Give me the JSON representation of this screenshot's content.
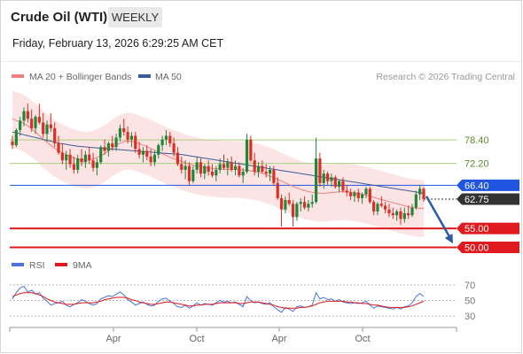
{
  "header": {
    "instrument": "Crude Oil (WTI)",
    "timeframe": "WEEKLY",
    "timestamp": "Friday, February 13, 2026 6:29:25 AM CET"
  },
  "legend": {
    "ma20_label": "MA 20 + Bollinger Bands",
    "ma50_label": "MA 50",
    "credit": "Research © 2026 Trading Central"
  },
  "rsi_legend": {
    "rsi_label": "RSI",
    "ma_label": "9MA"
  },
  "colors": {
    "bull": "#22863a",
    "bear": "#d93025",
    "ma20": "#f08080",
    "ma50": "#3a5a9a",
    "bollinger_fill": "#fde4e4",
    "resistance": "#a6cf7d",
    "pivot": "#1f55e0",
    "support": "#e0191e",
    "current_price_tag": "#333333",
    "arrow": "#2a5aa8",
    "rsi": "#4a74d9",
    "rsi_ma": "#e0191e"
  },
  "chart_data": [
    {
      "type": "candlestick",
      "title": "Crude Oil (WTI)",
      "x_tick_labels": [
        "Apr",
        "Oct",
        "Apr",
        "Oct"
      ],
      "ylim": [
        48,
        92
      ],
      "levels": [
        {
          "label": "78.40",
          "value": 78.4,
          "kind": "resistance"
        },
        {
          "label": "72.20",
          "value": 72.2,
          "kind": "resistance"
        },
        {
          "label": "66.40",
          "value": 66.4,
          "kind": "pivot"
        },
        {
          "label": "62.75",
          "value": 62.75,
          "kind": "last"
        },
        {
          "label": "55.00",
          "value": 55.0,
          "kind": "support"
        },
        {
          "label": "50.00",
          "value": 50.0,
          "kind": "support"
        }
      ],
      "forecast_arrow": {
        "from": 63.5,
        "to": 51.0
      },
      "ohlc": [
        [
          78.0,
          79.5,
          76.0,
          77.0
        ],
        [
          77.0,
          81.5,
          76.5,
          81.0
        ],
        [
          81.0,
          84.5,
          79.5,
          83.5
        ],
        [
          83.5,
          87.0,
          82.0,
          86.0
        ],
        [
          86.0,
          88.0,
          83.0,
          84.0
        ],
        [
          84.0,
          86.5,
          80.5,
          81.5
        ],
        [
          81.5,
          85.0,
          80.0,
          84.5
        ],
        [
          84.5,
          88.0,
          82.5,
          83.0
        ],
        [
          83.0,
          85.5,
          79.0,
          80.0
        ],
        [
          80.0,
          83.5,
          78.0,
          82.5
        ],
        [
          82.5,
          85.5,
          80.5,
          81.5
        ],
        [
          81.5,
          83.0,
          76.5,
          77.5
        ],
        [
          77.5,
          79.5,
          74.5,
          75.0
        ],
        [
          75.0,
          77.5,
          72.0,
          73.0
        ],
        [
          73.0,
          75.5,
          70.5,
          74.5
        ],
        [
          74.5,
          76.0,
          71.0,
          72.0
        ],
        [
          72.0,
          74.0,
          69.5,
          70.5
        ],
        [
          70.5,
          74.5,
          69.5,
          73.5
        ],
        [
          73.5,
          76.0,
          71.5,
          72.5
        ],
        [
          72.5,
          75.5,
          71.0,
          74.5
        ],
        [
          74.5,
          76.5,
          72.0,
          73.0
        ],
        [
          73.0,
          75.0,
          70.0,
          71.0
        ],
        [
          71.0,
          73.5,
          69.0,
          72.5
        ],
        [
          72.5,
          77.0,
          72.0,
          76.5
        ],
        [
          76.5,
          78.5,
          74.5,
          75.5
        ],
        [
          75.5,
          78.0,
          74.0,
          77.5
        ],
        [
          77.5,
          79.5,
          75.5,
          76.5
        ],
        [
          76.5,
          80.0,
          75.5,
          79.0
        ],
        [
          79.0,
          82.5,
          78.0,
          81.5
        ],
        [
          81.5,
          84.0,
          79.5,
          80.5
        ],
        [
          80.5,
          82.0,
          77.5,
          78.5
        ],
        [
          78.5,
          80.5,
          76.5,
          79.5
        ],
        [
          79.5,
          80.5,
          75.0,
          76.0
        ],
        [
          76.0,
          78.0,
          73.5,
          74.5
        ],
        [
          74.5,
          76.5,
          72.5,
          75.5
        ],
        [
          75.5,
          77.0,
          73.0,
          74.0
        ],
        [
          74.0,
          76.0,
          71.5,
          72.5
        ],
        [
          72.5,
          75.5,
          71.5,
          74.5
        ],
        [
          74.5,
          77.5,
          73.5,
          77.0
        ],
        [
          77.0,
          79.5,
          75.5,
          78.5
        ],
        [
          78.5,
          81.0,
          77.0,
          79.5
        ],
        [
          79.5,
          80.5,
          76.5,
          77.5
        ],
        [
          77.5,
          79.0,
          74.0,
          75.0
        ],
        [
          75.0,
          76.5,
          71.5,
          72.0
        ],
        [
          72.0,
          74.0,
          69.5,
          70.5
        ],
        [
          70.5,
          73.0,
          68.0,
          71.5
        ],
        [
          71.5,
          72.5,
          66.5,
          67.5
        ],
        [
          67.5,
          71.5,
          67.0,
          70.5
        ],
        [
          70.5,
          74.0,
          69.5,
          72.5
        ],
        [
          72.5,
          73.5,
          68.5,
          69.5
        ],
        [
          69.5,
          72.0,
          68.0,
          71.5
        ],
        [
          71.5,
          73.0,
          69.0,
          70.0
        ],
        [
          70.0,
          72.0,
          68.5,
          69.0
        ],
        [
          69.0,
          71.5,
          67.5,
          70.5
        ],
        [
          70.5,
          73.5,
          69.5,
          72.0
        ],
        [
          72.0,
          74.5,
          70.5,
          71.0
        ],
        [
          71.0,
          73.5,
          69.0,
          72.5
        ],
        [
          72.5,
          74.0,
          70.0,
          70.5
        ],
        [
          70.5,
          73.0,
          69.0,
          71.5
        ],
        [
          71.5,
          72.5,
          68.5,
          69.0
        ],
        [
          69.0,
          71.0,
          67.0,
          70.0
        ],
        [
          70.0,
          80.0,
          69.5,
          78.5
        ],
        [
          78.5,
          79.5,
          72.5,
          73.0
        ],
        [
          73.0,
          75.0,
          69.0,
          70.0
        ],
        [
          70.0,
          72.5,
          68.5,
          71.5
        ],
        [
          71.5,
          73.0,
          69.5,
          70.0
        ],
        [
          70.0,
          72.0,
          68.5,
          69.5
        ],
        [
          69.5,
          71.5,
          67.5,
          70.5
        ],
        [
          70.5,
          71.5,
          66.5,
          67.0
        ],
        [
          67.0,
          68.5,
          62.5,
          63.0
        ],
        [
          63.0,
          64.0,
          55.5,
          60.0
        ],
        [
          60.0,
          63.5,
          59.0,
          62.5
        ],
        [
          62.5,
          64.5,
          61.0,
          61.5
        ],
        [
          61.5,
          62.5,
          55.5,
          58.0
        ],
        [
          58.0,
          62.0,
          57.0,
          61.5
        ],
        [
          61.5,
          63.0,
          59.5,
          62.0
        ],
        [
          62.0,
          63.5,
          60.0,
          60.5
        ],
        [
          60.5,
          62.5,
          59.5,
          61.5
        ],
        [
          61.5,
          64.0,
          60.5,
          62.0
        ],
        [
          62.0,
          79.0,
          61.5,
          73.5
        ],
        [
          73.5,
          75.0,
          66.0,
          67.0
        ],
        [
          67.0,
          70.5,
          65.5,
          69.5
        ],
        [
          69.5,
          70.0,
          66.5,
          67.5
        ],
        [
          67.5,
          69.5,
          66.0,
          68.5
        ],
        [
          68.5,
          69.0,
          65.5,
          66.0
        ],
        [
          66.0,
          68.0,
          64.5,
          67.5
        ],
        [
          67.5,
          68.5,
          64.5,
          65.0
        ],
        [
          65.0,
          66.5,
          63.5,
          64.5
        ],
        [
          64.5,
          65.5,
          62.5,
          63.5
        ],
        [
          63.5,
          65.0,
          62.0,
          64.5
        ],
        [
          64.5,
          65.5,
          62.0,
          63.0
        ],
        [
          63.0,
          64.5,
          61.5,
          64.0
        ],
        [
          64.0,
          66.0,
          63.0,
          65.5
        ],
        [
          65.5,
          66.0,
          61.5,
          62.0
        ],
        [
          62.0,
          62.5,
          58.5,
          59.5
        ],
        [
          59.5,
          62.0,
          58.5,
          61.5
        ],
        [
          61.5,
          63.5,
          60.5,
          61.0
        ],
        [
          61.0,
          62.0,
          59.0,
          60.0
        ],
        [
          60.0,
          61.5,
          58.0,
          59.0
        ],
        [
          59.0,
          60.5,
          57.5,
          58.5
        ],
        [
          58.5,
          60.0,
          57.0,
          59.5
        ],
        [
          59.5,
          60.5,
          56.0,
          57.5
        ],
        [
          57.5,
          60.5,
          56.5,
          59.0
        ],
        [
          59.0,
          61.0,
          57.5,
          58.5
        ],
        [
          58.5,
          61.5,
          58.0,
          60.5
        ],
        [
          60.5,
          65.0,
          60.0,
          64.0
        ],
        [
          64.0,
          66.5,
          62.5,
          65.5
        ],
        [
          65.5,
          66.0,
          62.0,
          62.75
        ]
      ],
      "ma20": [
        84.0,
        83.5,
        83.2,
        82.6,
        81.9,
        81.0,
        80.1,
        79.0,
        78.0,
        77.2,
        76.3,
        75.6,
        75.0,
        74.5,
        74.0,
        73.6,
        73.3,
        73.1,
        73.0,
        73.2,
        73.6,
        74.1,
        74.6,
        75.4,
        76.3,
        77.0,
        77.6,
        78.0,
        78.1,
        77.9,
        77.6,
        77.2,
        76.8,
        76.3,
        75.8,
        75.3,
        74.8,
        74.3,
        73.8,
        73.4,
        73.0,
        72.6,
        72.2,
        71.9,
        71.6,
        71.4,
        71.2,
        71.0,
        70.9,
        70.8,
        70.7,
        70.6,
        70.6,
        70.6,
        70.6,
        70.5,
        70.4,
        70.3,
        70.1,
        69.9,
        69.6,
        69.2,
        68.8,
        68.4,
        67.9,
        67.4,
        66.9,
        66.4,
        65.9,
        65.5,
        65.1,
        64.8,
        64.6,
        64.4,
        64.3,
        64.3,
        64.4,
        64.5,
        64.6,
        64.7,
        64.7,
        64.6,
        64.5,
        64.3,
        64.1,
        63.8,
        63.5,
        63.2,
        62.9,
        62.6,
        62.3,
        62.0,
        61.7,
        61.4,
        61.1,
        60.8,
        60.6,
        60.4,
        60.3,
        60.3
      ],
      "ma50": [
        80.5,
        80.2,
        79.9,
        79.6,
        79.3,
        79.0,
        78.7,
        78.4,
        78.1,
        77.8,
        77.5,
        77.3,
        77.1,
        76.9,
        76.7,
        76.6,
        76.5,
        76.4,
        76.3,
        76.2,
        76.1,
        76.0,
        75.9,
        75.8,
        75.7,
        75.6,
        75.5,
        75.4,
        75.3,
        75.2,
        75.1,
        75.0,
        74.9,
        74.8,
        74.7,
        74.6,
        74.5,
        74.3,
        74.1,
        73.9,
        73.7,
        73.5,
        73.3,
        73.1,
        72.9,
        72.7,
        72.5,
        72.3,
        72.1,
        71.9,
        71.7,
        71.5,
        71.3,
        71.1,
        70.9,
        70.7,
        70.5,
        70.3,
        70.1,
        69.9,
        69.7,
        69.5,
        69.3,
        69.1,
        68.9,
        68.7,
        68.5,
        68.3,
        68.1,
        67.9,
        67.7,
        67.5,
        67.3,
        67.1,
        66.9,
        66.7,
        66.5,
        66.3,
        66.1,
        65.9,
        65.7,
        65.5,
        65.3,
        65.1,
        64.9,
        64.7,
        64.5,
        64.3
      ]
    },
    {
      "type": "line",
      "title": "RSI",
      "ylim": [
        20,
        80
      ],
      "y_tick_labels": [
        "70",
        "50",
        "30"
      ],
      "series": [
        {
          "name": "RSI",
          "values": [
            52,
            60,
            66,
            68,
            61,
            63,
            58,
            60,
            53,
            49,
            44,
            46,
            47,
            49,
            44,
            42,
            45,
            47,
            51,
            49,
            46,
            44,
            46,
            52,
            54,
            56,
            55,
            58,
            61,
            57,
            51,
            48,
            44,
            46,
            48,
            45,
            43,
            44,
            49,
            52,
            53,
            49,
            46,
            42,
            41,
            44,
            40,
            43,
            47,
            44,
            46,
            45,
            44,
            47,
            50,
            48,
            49,
            47,
            48,
            45,
            42,
            55,
            50,
            47,
            48,
            46,
            45,
            47,
            42,
            38,
            35,
            41,
            39,
            36,
            42,
            43,
            41,
            42,
            44,
            60,
            52,
            54,
            51,
            52,
            49,
            51,
            48,
            47,
            46,
            47,
            46,
            47,
            49,
            44,
            40,
            43,
            42,
            41,
            40,
            39,
            41,
            39,
            42,
            43,
            47,
            55,
            59,
            55
          ]
        },
        {
          "name": "9MA",
          "values": [
            55,
            57,
            59,
            60,
            60,
            60,
            59,
            57,
            55,
            52,
            50,
            48,
            47,
            46,
            45,
            45,
            45,
            46,
            47,
            47,
            47,
            47,
            48,
            49,
            51,
            52,
            53,
            54,
            54,
            54,
            53,
            51,
            50,
            48,
            47,
            46,
            45,
            45,
            46,
            47,
            48,
            48,
            47,
            46,
            45,
            44,
            43,
            43,
            44,
            44,
            45,
            45,
            45,
            46,
            47,
            47,
            47,
            47,
            47,
            46,
            46,
            47,
            48,
            48,
            48,
            47,
            46,
            45,
            44,
            42,
            41,
            40,
            40,
            40,
            40,
            41,
            41,
            42,
            43,
            45,
            47,
            48,
            49,
            49,
            49,
            49,
            49,
            48,
            48,
            47,
            47,
            46,
            46,
            45,
            44,
            44,
            43,
            42,
            41,
            41,
            41,
            41,
            41,
            42,
            43,
            45,
            47,
            49
          ]
        }
      ]
    }
  ]
}
